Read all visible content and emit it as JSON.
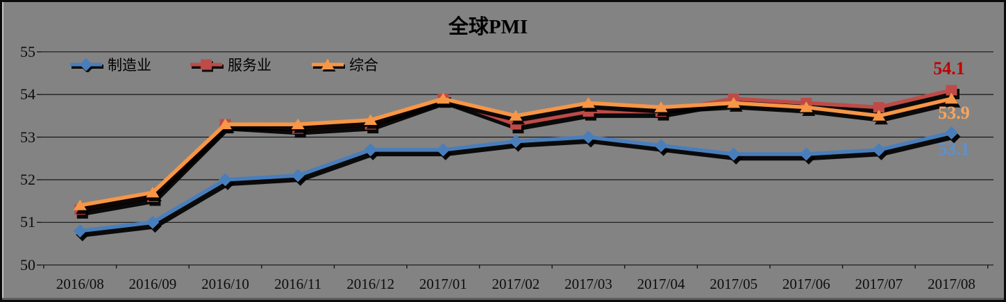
{
  "title": "全球PMI",
  "colors": {
    "background": "#838383",
    "gridline": "#161616",
    "manufacturing_line": "#4A7EBB",
    "services_line": "#BE4B48",
    "composite_line": "#F79646",
    "label_services": "#C00000",
    "label_composite": "#FAA55C",
    "label_manufacturing": "#5C90D2"
  },
  "chart_data": {
    "type": "line",
    "title": "全球PMI",
    "xlabel": "",
    "ylabel": "",
    "ylim": [
      50,
      55
    ],
    "y_ticks": [
      50,
      51,
      52,
      53,
      54,
      55
    ],
    "grid": "horizontal",
    "legend_position": "top-left-inside",
    "categories": [
      "2016/08",
      "2016/09",
      "2016/10",
      "2016/11",
      "2016/12",
      "2017/01",
      "2017/02",
      "2017/03",
      "2017/04",
      "2017/05",
      "2017/06",
      "2017/07",
      "2017/08"
    ],
    "series": [
      {
        "name": "制造业",
        "marker": "diamond",
        "color": "#4A7EBB",
        "values": [
          50.8,
          51.0,
          52.0,
          52.1,
          52.7,
          52.7,
          52.9,
          53.0,
          52.8,
          52.6,
          52.6,
          52.7,
          53.1
        ]
      },
      {
        "name": "服务业",
        "marker": "square",
        "color": "#BE4B48",
        "values": [
          51.3,
          51.6,
          53.3,
          53.2,
          53.3,
          53.9,
          53.3,
          53.6,
          53.6,
          53.9,
          53.8,
          53.7,
          54.1
        ]
      },
      {
        "name": "综合",
        "marker": "triangle",
        "color": "#F79646",
        "values": [
          51.4,
          51.7,
          53.3,
          53.3,
          53.4,
          53.9,
          53.5,
          53.8,
          53.7,
          53.8,
          53.7,
          53.5,
          53.9
        ]
      }
    ],
    "end_labels": [
      {
        "series": "服务业",
        "text": "54.1",
        "color": "#C00000"
      },
      {
        "series": "综合",
        "text": "53.9",
        "color": "#FAA55C"
      },
      {
        "series": "制造业",
        "text": "53.1",
        "color": "#5C90D2"
      }
    ]
  }
}
